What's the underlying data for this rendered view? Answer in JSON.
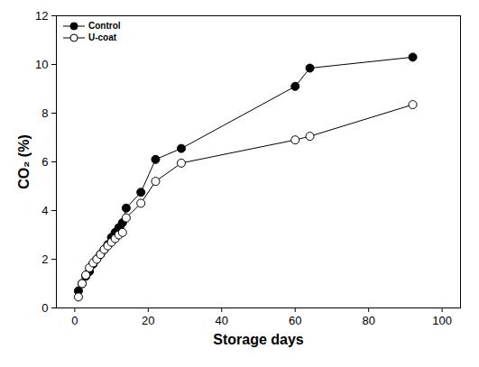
{
  "chart_data": {
    "type": "line",
    "x_label": "Storage days",
    "y_label": "CO₂ (%)",
    "x": [
      1,
      2,
      3,
      4,
      5,
      6,
      7,
      8,
      9,
      10,
      11,
      12,
      13,
      14,
      18,
      22,
      29,
      60,
      64,
      92
    ],
    "series": [
      {
        "name": "Control",
        "color": "#000000",
        "marker": "filled_circle",
        "values": [
          0.7,
          1.0,
          1.3,
          1.5,
          1.8,
          2.0,
          2.2,
          2.4,
          2.6,
          2.9,
          3.1,
          3.3,
          3.5,
          4.1,
          4.75,
          6.1,
          6.55,
          9.1,
          9.85,
          10.3
        ]
      },
      {
        "name": "U-coat",
        "color": "#000000",
        "marker": "open_circle",
        "values": [
          0.45,
          1.0,
          1.35,
          1.65,
          1.85,
          2.0,
          2.2,
          2.4,
          2.55,
          2.7,
          2.85,
          3.0,
          3.1,
          3.7,
          4.3,
          5.2,
          5.95,
          6.9,
          7.05,
          8.35
        ]
      }
    ],
    "xlim": [
      -5,
      105
    ],
    "xticks": [
      0,
      20,
      40,
      60,
      80,
      100
    ],
    "ylim": [
      0,
      12
    ],
    "yticks": [
      0,
      2,
      4,
      6,
      8,
      10,
      12
    ],
    "legend": "upper left"
  }
}
